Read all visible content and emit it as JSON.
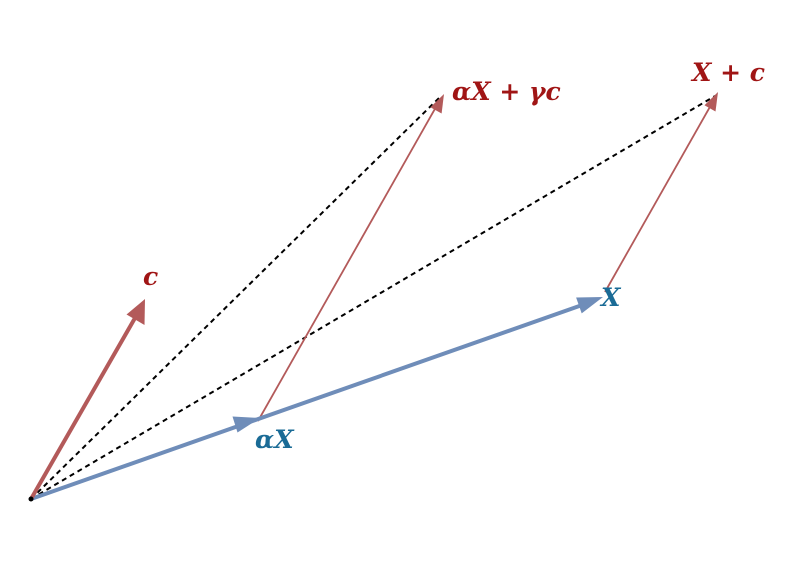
{
  "labels": {
    "c": "c",
    "X": "X",
    "alpha_X": "αX",
    "alpha_X_plus_gamma_c": "αX + γc",
    "X_plus_c": "X + c"
  },
  "colors": {
    "red_vector": "#b35a5a",
    "blue_vector": "#6f8db9",
    "red_label": "#a01515",
    "blue_label": "#1a6b96",
    "dashed_line": "#000000"
  }
}
